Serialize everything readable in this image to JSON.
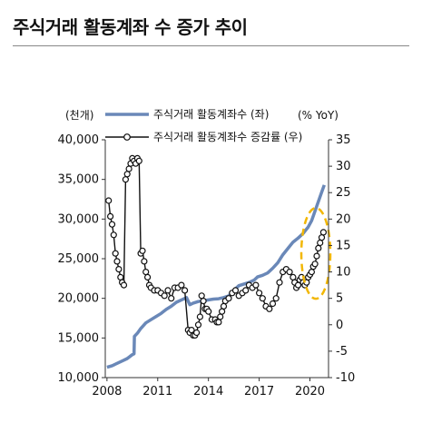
{
  "title": "주식거래 활동계좌 수 증가 추이",
  "colors": {
    "accounts_line": "#6a88b8",
    "yoy_line": "#111111",
    "yoy_marker_fill": "#ffffff",
    "highlight": "#f2b705",
    "axis": "#333333"
  },
  "chart_data": {
    "type": "line",
    "left_unit_label": "(천개)",
    "right_unit_label": "(% YoY)",
    "x_ticks": [
      "2008",
      "2011",
      "2014",
      "2017",
      "2020"
    ],
    "x_range": [
      2007.9,
      2021.1
    ],
    "left_axis": {
      "ticks": [
        "10,000",
        "15,000",
        "20,000",
        "25,000",
        "30,000",
        "35,000",
        "40,000"
      ],
      "range": [
        10000,
        40000
      ]
    },
    "right_axis": {
      "ticks": [
        "-10",
        "-5",
        "0",
        "5",
        "10",
        "15",
        "20",
        "25",
        "30",
        "35"
      ],
      "range": [
        -10,
        35
      ]
    },
    "highlight": "dashed ellipse around 2019.7–2020.8 YoY rise",
    "series": [
      {
        "name": "주식거래 활동계좌수 (좌)",
        "axis": "left",
        "points": [
          [
            2008.0,
            11300
          ],
          [
            2008.3,
            11500
          ],
          [
            2008.6,
            11800
          ],
          [
            2008.9,
            12100
          ],
          [
            2009.2,
            12400
          ],
          [
            2009.5,
            12900
          ],
          [
            2009.6,
            13000
          ],
          [
            2009.62,
            15200
          ],
          [
            2009.8,
            15600
          ],
          [
            2010.0,
            16200
          ],
          [
            2010.3,
            16900
          ],
          [
            2010.6,
            17300
          ],
          [
            2010.9,
            17700
          ],
          [
            2011.2,
            18100
          ],
          [
            2011.5,
            18600
          ],
          [
            2011.8,
            19000
          ],
          [
            2012.1,
            19500
          ],
          [
            2012.4,
            19800
          ],
          [
            2012.7,
            20100
          ],
          [
            2012.9,
            19200
          ],
          [
            2013.1,
            19400
          ],
          [
            2013.4,
            19600
          ],
          [
            2013.7,
            19700
          ],
          [
            2014.0,
            19800
          ],
          [
            2014.3,
            19900
          ],
          [
            2014.6,
            19950
          ],
          [
            2014.9,
            20100
          ],
          [
            2015.2,
            20300
          ],
          [
            2015.5,
            21000
          ],
          [
            2015.8,
            21600
          ],
          [
            2016.1,
            21800
          ],
          [
            2016.4,
            22000
          ],
          [
            2016.7,
            22300
          ],
          [
            2016.9,
            22700
          ],
          [
            2017.2,
            22900
          ],
          [
            2017.5,
            23200
          ],
          [
            2017.8,
            23800
          ],
          [
            2018.1,
            24500
          ],
          [
            2018.4,
            25500
          ],
          [
            2018.7,
            26300
          ],
          [
            2019.0,
            27100
          ],
          [
            2019.3,
            27600
          ],
          [
            2019.6,
            28200
          ],
          [
            2019.9,
            29000
          ],
          [
            2020.1,
            29800
          ],
          [
            2020.3,
            31000
          ],
          [
            2020.5,
            32200
          ],
          [
            2020.7,
            33400
          ],
          [
            2020.85,
            34300
          ]
        ]
      },
      {
        "name": "주식거래 활동계좌수 증감률 (우)",
        "axis": "right",
        "points": [
          [
            2008.1,
            23.5
          ],
          [
            2008.2,
            20.5
          ],
          [
            2008.3,
            19
          ],
          [
            2008.4,
            17
          ],
          [
            2008.5,
            13.5
          ],
          [
            2008.6,
            12
          ],
          [
            2008.7,
            10.5
          ],
          [
            2008.8,
            9
          ],
          [
            2008.9,
            8
          ],
          [
            2009.0,
            7.5
          ],
          [
            2009.1,
            27.5
          ],
          [
            2009.2,
            28.5
          ],
          [
            2009.3,
            29.5
          ],
          [
            2009.4,
            30.5
          ],
          [
            2009.5,
            31.5
          ],
          [
            2009.6,
            31
          ],
          [
            2009.7,
            30.5
          ],
          [
            2009.8,
            31.5
          ],
          [
            2009.9,
            31
          ],
          [
            2010.0,
            13.5
          ],
          [
            2010.1,
            14
          ],
          [
            2010.2,
            12
          ],
          [
            2010.3,
            10
          ],
          [
            2010.4,
            9
          ],
          [
            2010.5,
            7.5
          ],
          [
            2010.6,
            7
          ],
          [
            2010.8,
            6.5
          ],
          [
            2011.0,
            6.5
          ],
          [
            2011.2,
            6
          ],
          [
            2011.4,
            5.5
          ],
          [
            2011.6,
            6.5
          ],
          [
            2011.8,
            5
          ],
          [
            2012.0,
            7
          ],
          [
            2012.2,
            7
          ],
          [
            2012.4,
            7.5
          ],
          [
            2012.6,
            6.5
          ],
          [
            2012.8,
            -1
          ],
          [
            2012.9,
            -1.5
          ],
          [
            2013.0,
            -1
          ],
          [
            2013.1,
            -2
          ],
          [
            2013.2,
            -2
          ],
          [
            2013.3,
            -1.5
          ],
          [
            2013.4,
            0
          ],
          [
            2013.5,
            1.5
          ],
          [
            2013.6,
            5.5
          ],
          [
            2013.7,
            4.5
          ],
          [
            2013.8,
            3
          ],
          [
            2013.9,
            3
          ],
          [
            2014.0,
            2.5
          ],
          [
            2014.2,
            1
          ],
          [
            2014.4,
            1
          ],
          [
            2014.5,
            0.5
          ],
          [
            2014.6,
            0.5
          ],
          [
            2014.7,
            1.5
          ],
          [
            2014.8,
            2.5
          ],
          [
            2014.9,
            3.5
          ],
          [
            2015.0,
            4.5
          ],
          [
            2015.2,
            5
          ],
          [
            2015.4,
            6
          ],
          [
            2015.6,
            6.5
          ],
          [
            2015.8,
            5.5
          ],
          [
            2016.0,
            6
          ],
          [
            2016.2,
            6.5
          ],
          [
            2016.4,
            7.5
          ],
          [
            2016.6,
            7
          ],
          [
            2016.8,
            7.5
          ],
          [
            2017.0,
            6
          ],
          [
            2017.2,
            5
          ],
          [
            2017.4,
            3.5
          ],
          [
            2017.6,
            3
          ],
          [
            2017.8,
            4
          ],
          [
            2018.0,
            5
          ],
          [
            2018.2,
            8
          ],
          [
            2018.4,
            10
          ],
          [
            2018.6,
            10.5
          ],
          [
            2018.8,
            10
          ],
          [
            2019.0,
            9
          ],
          [
            2019.1,
            8
          ],
          [
            2019.2,
            7
          ],
          [
            2019.3,
            7.5
          ],
          [
            2019.4,
            8.5
          ],
          [
            2019.5,
            9
          ],
          [
            2019.6,
            8
          ],
          [
            2019.7,
            7.5
          ],
          [
            2019.8,
            8
          ],
          [
            2019.9,
            9
          ],
          [
            2020.0,
            9.5
          ],
          [
            2020.1,
            10
          ],
          [
            2020.2,
            11
          ],
          [
            2020.3,
            11.5
          ],
          [
            2020.4,
            13
          ],
          [
            2020.5,
            14.5
          ],
          [
            2020.6,
            15.5
          ],
          [
            2020.7,
            16.5
          ],
          [
            2020.8,
            17.5
          ]
        ]
      }
    ]
  }
}
